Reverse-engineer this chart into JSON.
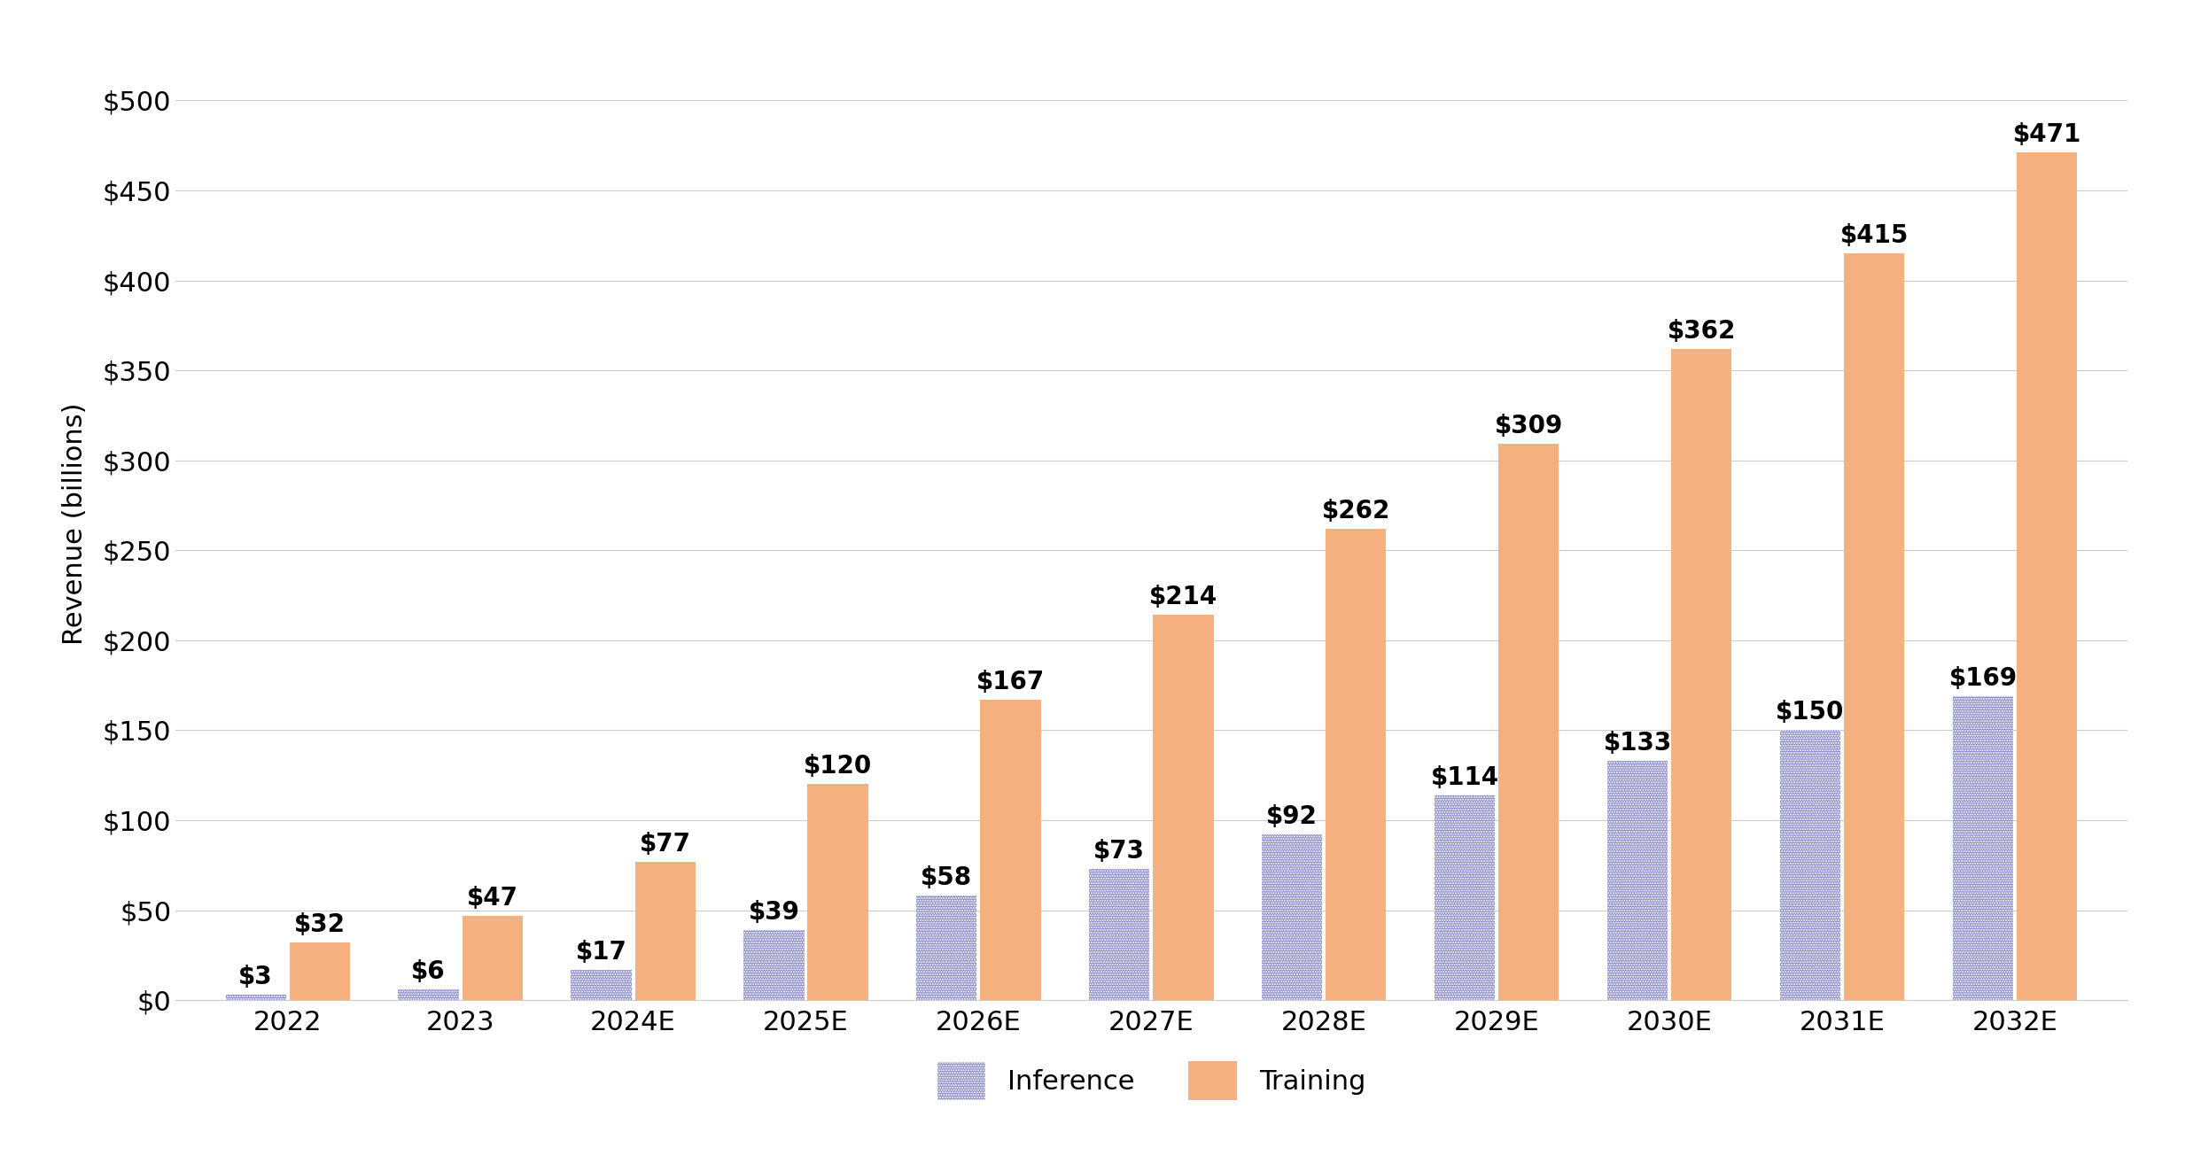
{
  "categories": [
    "2022",
    "2023",
    "2024E",
    "2025E",
    "2026E",
    "2027E",
    "2028E",
    "2029E",
    "2030E",
    "2031E",
    "2032E"
  ],
  "inference_values": [
    3,
    6,
    17,
    39,
    58,
    73,
    92,
    114,
    133,
    150,
    169
  ],
  "training_values": [
    32,
    47,
    77,
    120,
    167,
    214,
    262,
    309,
    362,
    415,
    471
  ],
  "inference_color": "#9090C8",
  "training_color": "#F5B080",
  "ylabel": "Revenue (billions)",
  "ylim": [
    0,
    530
  ],
  "yticks": [
    0,
    50,
    100,
    150,
    200,
    250,
    300,
    350,
    400,
    450,
    500
  ],
  "ytick_labels": [
    "$0",
    "$50",
    "$100",
    "$150",
    "$200",
    "$250",
    "$300",
    "$350",
    "$400",
    "$450",
    "$500"
  ],
  "background_color": "#ffffff",
  "grid_color": "#cccccc",
  "bar_width": 0.35,
  "bar_gap": 0.02,
  "tick_fontsize": 22,
  "annotation_fontsize": 20,
  "legend_fontsize": 22,
  "ylabel_fontsize": 22,
  "xlabel_fontsize": 22,
  "legend_inference_label": "Inference",
  "legend_training_label": "Training"
}
